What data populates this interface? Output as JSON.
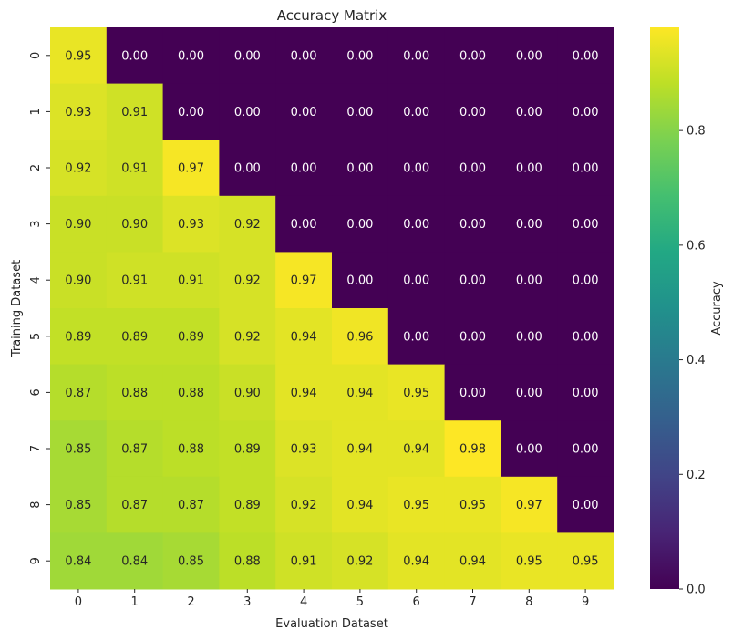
{
  "chart_data": {
    "type": "heatmap",
    "title": "Accuracy Matrix",
    "xlabel": "Evaluation Dataset",
    "ylabel": "Training Dataset",
    "x_categories": [
      "0",
      "1",
      "2",
      "3",
      "4",
      "5",
      "6",
      "7",
      "8",
      "9"
    ],
    "y_categories": [
      "0",
      "1",
      "2",
      "3",
      "4",
      "5",
      "6",
      "7",
      "8",
      "9"
    ],
    "values": [
      [
        0.95,
        0.0,
        0.0,
        0.0,
        0.0,
        0.0,
        0.0,
        0.0,
        0.0,
        0.0
      ],
      [
        0.93,
        0.91,
        0.0,
        0.0,
        0.0,
        0.0,
        0.0,
        0.0,
        0.0,
        0.0
      ],
      [
        0.92,
        0.91,
        0.97,
        0.0,
        0.0,
        0.0,
        0.0,
        0.0,
        0.0,
        0.0
      ],
      [
        0.9,
        0.9,
        0.93,
        0.92,
        0.0,
        0.0,
        0.0,
        0.0,
        0.0,
        0.0
      ],
      [
        0.9,
        0.91,
        0.91,
        0.92,
        0.97,
        0.0,
        0.0,
        0.0,
        0.0,
        0.0
      ],
      [
        0.89,
        0.89,
        0.89,
        0.92,
        0.94,
        0.96,
        0.0,
        0.0,
        0.0,
        0.0
      ],
      [
        0.87,
        0.88,
        0.88,
        0.9,
        0.94,
        0.94,
        0.95,
        0.0,
        0.0,
        0.0
      ],
      [
        0.85,
        0.87,
        0.88,
        0.89,
        0.93,
        0.94,
        0.94,
        0.98,
        0.0,
        0.0
      ],
      [
        0.85,
        0.87,
        0.87,
        0.89,
        0.92,
        0.94,
        0.95,
        0.95,
        0.97,
        0.0
      ],
      [
        0.84,
        0.84,
        0.85,
        0.88,
        0.91,
        0.92,
        0.94,
        0.94,
        0.95,
        0.95
      ]
    ],
    "value_format": "0.00",
    "colormap": "viridis",
    "colorbar": {
      "label": "Accuracy",
      "range": [
        0.0,
        0.98
      ],
      "ticks": [
        0.0,
        0.2,
        0.4,
        0.6,
        0.8
      ],
      "tick_labels": [
        "0.0",
        "0.2",
        "0.4",
        "0.6",
        "0.8"
      ]
    },
    "grid": false
  }
}
